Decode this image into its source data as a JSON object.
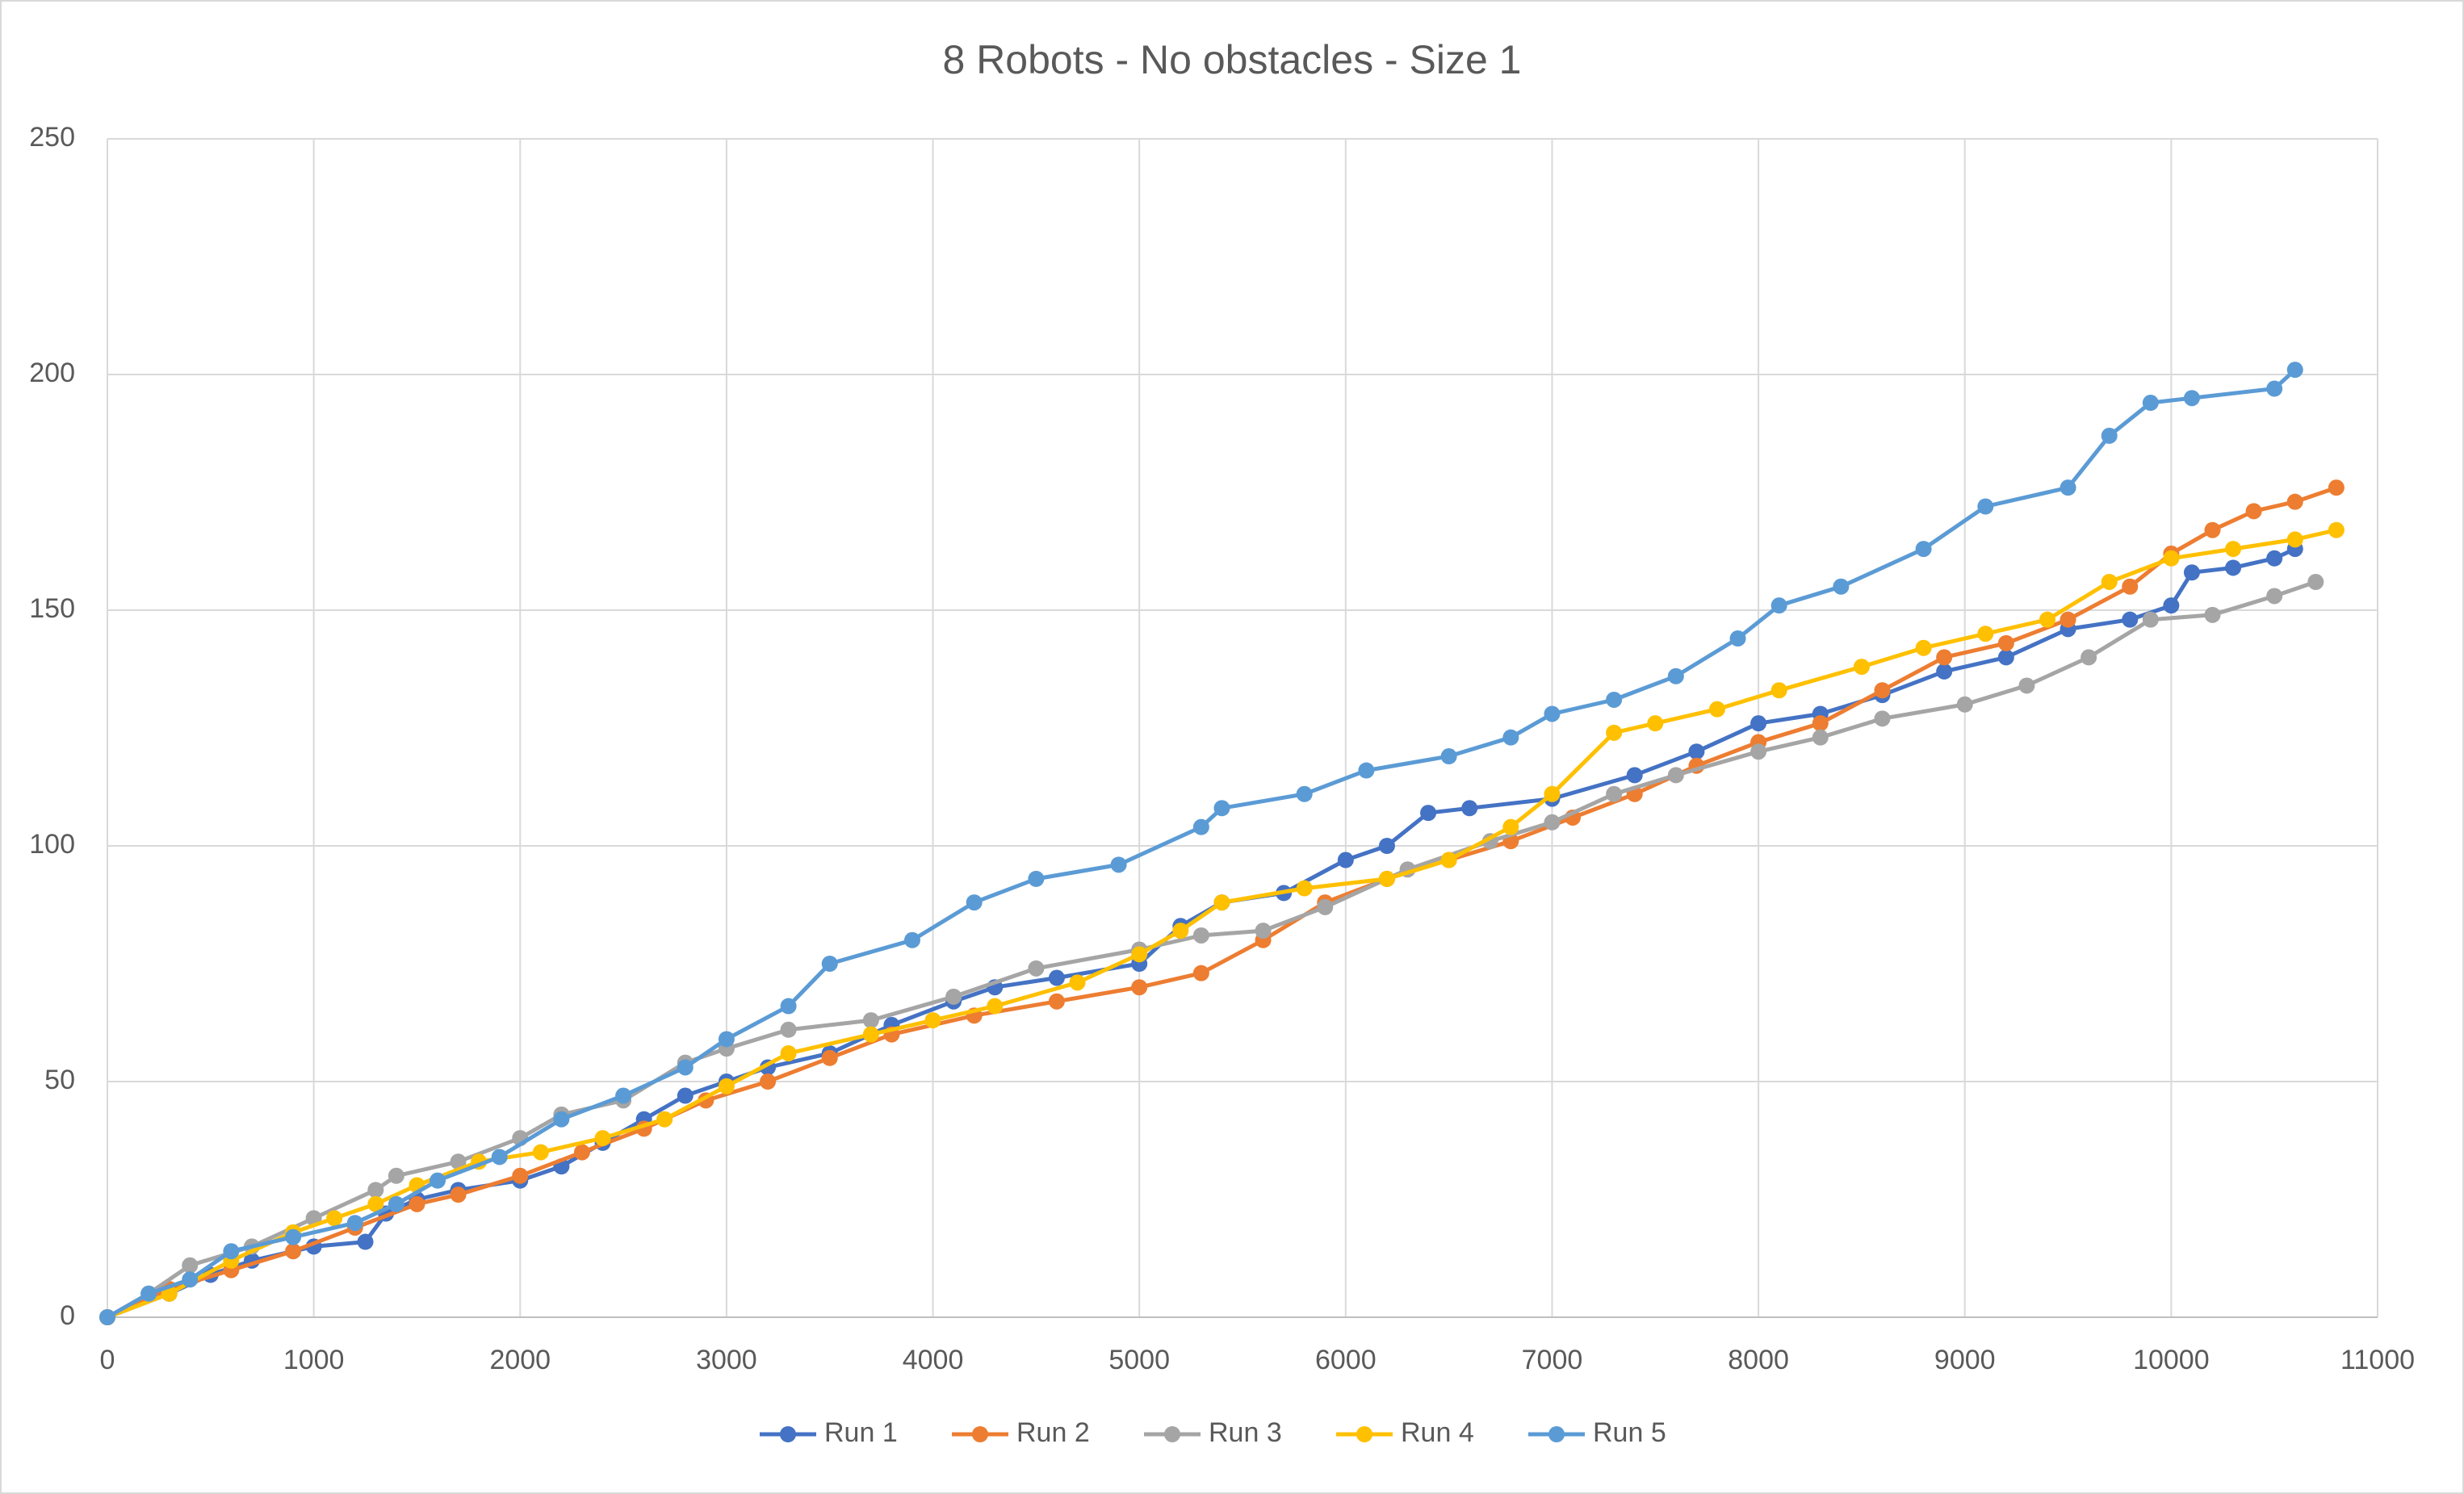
{
  "chart_data": {
    "type": "line",
    "title": "8 Robots - No obstacles - Size 1",
    "xlim": [
      0,
      11000
    ],
    "xticks": [
      0,
      1000,
      2000,
      3000,
      4000,
      5000,
      6000,
      7000,
      8000,
      9000,
      10000,
      11000
    ],
    "ylim": [
      0,
      250
    ],
    "yticks": [
      0,
      50,
      100,
      150,
      200,
      250
    ],
    "grid": true,
    "legend": "bottom",
    "series": [
      {
        "name": "Run 1",
        "color": "#4472c4",
        "x": [
          0,
          300,
          500,
          700,
          1000,
          1250,
          1350,
          1500,
          1700,
          2000,
          2200,
          2400,
          2600,
          2800,
          3000,
          3200,
          3500,
          3800,
          4100,
          4300,
          4600,
          5000,
          5200,
          5400,
          5700,
          6000,
          6200,
          6400,
          6600,
          7000,
          7400,
          7700,
          8000,
          8300,
          8600,
          8900,
          9200,
          9500,
          9800,
          10000,
          10100,
          10300,
          10500,
          10600
        ],
        "values": [
          0,
          5,
          9,
          12,
          15,
          16,
          22,
          25,
          27,
          29,
          32,
          37,
          42,
          47,
          50,
          53,
          56,
          62,
          67,
          70,
          72,
          75,
          83,
          88,
          90,
          97,
          100,
          107,
          108,
          110,
          115,
          120,
          126,
          128,
          132,
          137,
          140,
          146,
          148,
          151,
          158,
          159,
          161,
          163
        ]
      },
      {
        "name": "Run 2",
        "color": "#ed7d31",
        "x": [
          0,
          300,
          600,
          900,
          1200,
          1500,
          1700,
          2000,
          2300,
          2600,
          2900,
          3200,
          3500,
          3800,
          4200,
          4600,
          5000,
          5300,
          5600,
          5900,
          6200,
          6500,
          6800,
          7100,
          7400,
          7700,
          8000,
          8300,
          8600,
          8900,
          9200,
          9500,
          9800,
          10000,
          10200,
          10400,
          10600,
          10800
        ],
        "values": [
          0,
          6,
          10,
          14,
          19,
          24,
          26,
          30,
          35,
          40,
          46,
          50,
          55,
          60,
          64,
          67,
          70,
          73,
          80,
          88,
          93,
          97,
          101,
          106,
          111,
          117,
          122,
          126,
          133,
          140,
          143,
          148,
          155,
          162,
          167,
          171,
          173,
          176
        ]
      },
      {
        "name": "Run 3",
        "color": "#a5a5a5",
        "x": [
          0,
          200,
          400,
          700,
          1000,
          1300,
          1400,
          1700,
          2000,
          2200,
          2500,
          2800,
          3000,
          3300,
          3700,
          4100,
          4500,
          5000,
          5300,
          5600,
          5900,
          6300,
          6700,
          7000,
          7300,
          7600,
          8000,
          8300,
          8600,
          9000,
          9300,
          9600,
          9900,
          10200,
          10500,
          10700
        ],
        "values": [
          0,
          5,
          11,
          15,
          21,
          27,
          30,
          33,
          38,
          43,
          46,
          54,
          57,
          61,
          63,
          68,
          74,
          78,
          81,
          82,
          87,
          95,
          101,
          105,
          111,
          115,
          120,
          123,
          127,
          130,
          134,
          140,
          148,
          149,
          153,
          156
        ]
      },
      {
        "name": "Run 4",
        "color": "#ffc000",
        "x": [
          0,
          300,
          600,
          900,
          1100,
          1300,
          1500,
          1800,
          2100,
          2400,
          2700,
          3000,
          3300,
          3700,
          4000,
          4300,
          4700,
          5000,
          5200,
          5400,
          5800,
          6200,
          6500,
          6800,
          7000,
          7300,
          7500,
          7800,
          8100,
          8500,
          8800,
          9100,
          9400,
          9700,
          10000,
          10300,
          10600,
          10800
        ],
        "values": [
          0,
          5,
          12,
          18,
          21,
          24,
          28,
          33,
          35,
          38,
          42,
          49,
          56,
          60,
          63,
          66,
          71,
          77,
          82,
          88,
          91,
          93,
          97,
          104,
          111,
          124,
          126,
          129,
          133,
          138,
          142,
          145,
          148,
          156,
          161,
          163,
          165,
          167
        ]
      },
      {
        "name": "Run 5",
        "color": "#5b9bd5",
        "x": [
          0,
          200,
          400,
          600,
          900,
          1200,
          1400,
          1600,
          1900,
          2200,
          2500,
          2800,
          3000,
          3300,
          3500,
          3900,
          4200,
          4500,
          4900,
          5300,
          5400,
          5800,
          6100,
          6500,
          6800,
          7000,
          7300,
          7600,
          7900,
          8100,
          8400,
          8800,
          9100,
          9500,
          9700,
          9900,
          10100,
          10500,
          10600
        ],
        "values": [
          0,
          5,
          8,
          14,
          17,
          20,
          24,
          29,
          34,
          42,
          47,
          53,
          59,
          66,
          75,
          80,
          88,
          93,
          96,
          104,
          108,
          111,
          116,
          119,
          123,
          128,
          131,
          136,
          144,
          151,
          155,
          163,
          172,
          176,
          187,
          194,
          195,
          197,
          201
        ]
      }
    ]
  }
}
